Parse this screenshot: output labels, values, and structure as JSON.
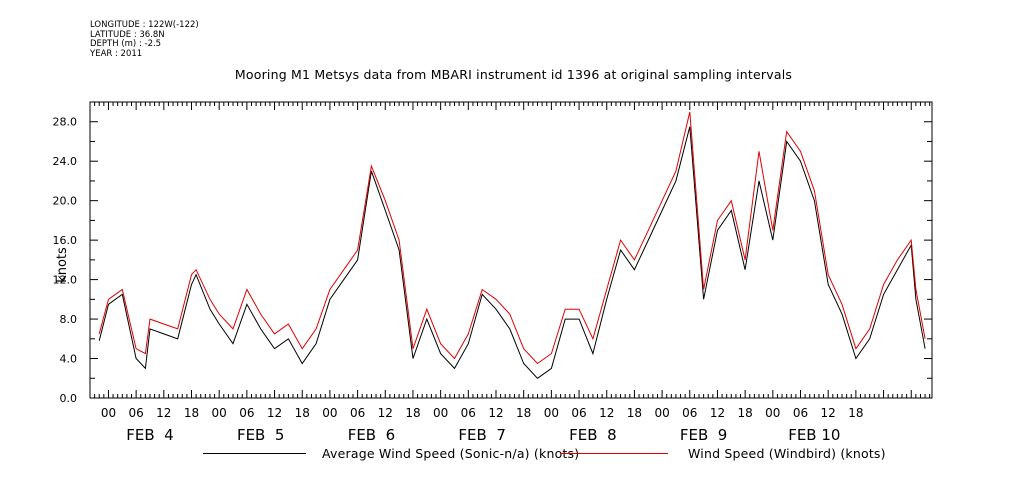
{
  "meta": {
    "longitude": "LONGITUDE : 122W(-122)",
    "latitude": "LATITUDE : 36.8N",
    "depth": "DEPTH (m) : -2.5",
    "year": "YEAR : 2011"
  },
  "chart_data": {
    "type": "line",
    "title": "Mooring M1 Metsys data from MBARI instrument id 1396 at original sampling intervals",
    "xlabel": "",
    "ylabel": "knots",
    "ylim": [
      0,
      30
    ],
    "yticks": [
      "0.0",
      "4.0",
      "8.0",
      "12.0",
      "16.0",
      "20.0",
      "24.0",
      "28.0"
    ],
    "hour_tick_labels": [
      "00",
      "06",
      "12",
      "18"
    ],
    "day_labels": [
      "FEB  4",
      "FEB  5",
      "FEB  6",
      "FEB  7",
      "FEB  8",
      "FEB  9",
      "FEB 10"
    ],
    "grid": false,
    "legend_position": "bottom",
    "series": [
      {
        "name": "Average Wind Speed (Sonic-n/a) (knots)",
        "color": "#000000",
        "x_hours": [
          -2,
          0,
          3,
          6,
          8,
          9,
          12,
          15,
          18,
          19,
          22,
          24,
          27,
          30,
          33,
          36,
          39,
          42,
          45,
          48,
          51,
          54,
          57,
          60,
          63,
          66,
          69,
          72,
          75,
          78,
          81,
          84,
          87,
          90,
          93,
          96,
          99,
          102,
          105,
          108,
          111,
          114,
          117,
          120,
          123,
          126,
          129,
          132,
          135,
          138,
          141,
          144,
          147,
          150,
          153,
          156,
          159,
          162,
          165,
          168,
          171,
          174,
          175,
          177
        ],
        "values": [
          5.8,
          9.5,
          10.5,
          4.0,
          3.0,
          7.0,
          6.5,
          6.0,
          11.5,
          12.5,
          9.0,
          7.5,
          5.5,
          9.5,
          7.0,
          5.0,
          6.0,
          3.5,
          5.5,
          10.0,
          12.0,
          14.0,
          23.0,
          19.0,
          15.0,
          4.0,
          8.0,
          4.5,
          3.0,
          5.5,
          10.5,
          9.0,
          7.0,
          3.5,
          2.0,
          3.0,
          8.0,
          8.0,
          4.5,
          10.0,
          15.0,
          13.0,
          16.0,
          19.0,
          22.0,
          27.5,
          10.0,
          17.0,
          19.0,
          13.0,
          22.0,
          16.0,
          26.0,
          24.0,
          20.0,
          11.5,
          8.5,
          4.0,
          6.0,
          10.5,
          13.0,
          15.5,
          10.0,
          5.0
        ]
      },
      {
        "name": "Wind Speed (Windbird) (knots)",
        "color": "#e00000",
        "x_hours": [
          -2,
          0,
          3,
          6,
          8,
          9,
          12,
          15,
          18,
          19,
          22,
          24,
          27,
          30,
          33,
          36,
          39,
          42,
          45,
          48,
          51,
          54,
          57,
          60,
          63,
          66,
          69,
          72,
          75,
          78,
          81,
          84,
          87,
          90,
          93,
          96,
          99,
          102,
          105,
          108,
          111,
          114,
          117,
          120,
          123,
          126,
          129,
          132,
          135,
          138,
          141,
          144,
          147,
          150,
          153,
          156,
          159,
          162,
          165,
          168,
          171,
          174,
          175,
          177
        ],
        "values": [
          6.5,
          10.0,
          11.0,
          5.0,
          4.5,
          8.0,
          7.5,
          7.0,
          12.5,
          13.0,
          10.0,
          8.5,
          7.0,
          11.0,
          8.5,
          6.5,
          7.5,
          5.0,
          7.0,
          11.0,
          13.0,
          15.0,
          23.5,
          20.0,
          16.0,
          5.0,
          9.0,
          5.5,
          4.0,
          6.5,
          11.0,
          10.0,
          8.5,
          5.0,
          3.5,
          4.5,
          9.0,
          9.0,
          6.0,
          11.0,
          16.0,
          14.0,
          17.0,
          20.0,
          23.0,
          29.0,
          11.0,
          18.0,
          20.0,
          14.0,
          25.0,
          17.0,
          27.0,
          25.0,
          21.0,
          12.5,
          9.5,
          5.0,
          7.0,
          11.5,
          14.0,
          16.0,
          11.0,
          6.0
        ]
      }
    ]
  }
}
